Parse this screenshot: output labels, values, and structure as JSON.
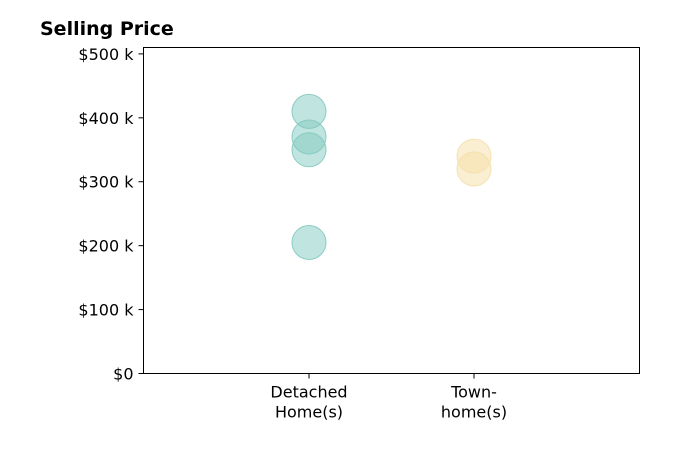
{
  "chart_data": {
    "type": "scatter",
    "title": "Selling Price",
    "xlabel": "",
    "ylabel": "",
    "ylim": [
      0,
      510000
    ],
    "y_ticks": [
      0,
      100000,
      200000,
      300000,
      400000,
      500000
    ],
    "y_tick_labels": [
      "$0",
      "$100 k",
      "$200 k",
      "$300 k",
      "$400 k",
      "$500 k"
    ],
    "categories": [
      {
        "label_lines": [
          "Detached",
          "Home(s)"
        ]
      },
      {
        "label_lines": [
          "Town-",
          "home(s)"
        ]
      }
    ],
    "grid": false,
    "legend": "none",
    "series": [
      {
        "category_index": 0,
        "color": "#82c9bf",
        "values": [
          410000,
          370000,
          350000,
          205000
        ]
      },
      {
        "category_index": 1,
        "color": "#f5dfa8",
        "values": [
          340000,
          320000
        ]
      }
    ]
  }
}
